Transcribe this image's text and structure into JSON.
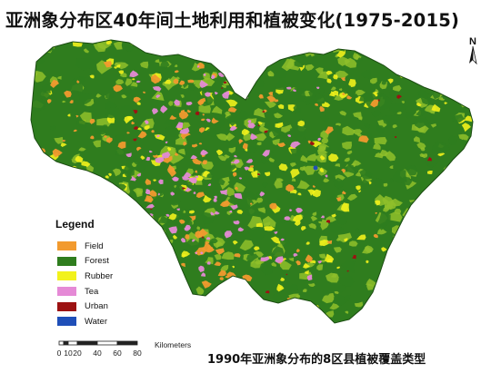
{
  "title": "亚洲象分布区40年间土地利用和植被变化(1975-2015)",
  "caption": "1990年亚洲象分布的8区县植被覆盖类型",
  "north_arrow": {
    "letter": "N",
    "icon": "north-arrow-icon"
  },
  "legend": {
    "title": "Legend",
    "items": [
      {
        "label": "Field",
        "color": "#f29a2e"
      },
      {
        "label": "Forest",
        "color": "#2f7d1e"
      },
      {
        "label": "Rubber",
        "color": "#f2f21b"
      },
      {
        "label": "Tea",
        "color": "#e58ad6"
      },
      {
        "label": "Urban",
        "color": "#9c1212"
      },
      {
        "label": "Water",
        "color": "#1f4fb8"
      }
    ]
  },
  "scale_bar": {
    "unit": "Kilometers",
    "ticks": [
      "0",
      "10",
      "20",
      "40",
      "60",
      "80"
    ]
  },
  "map_colors": {
    "forest": "#2f7d1e",
    "light_green": "#8fbf2a",
    "rubber": "#f2f21b",
    "field": "#f29a2e",
    "tea": "#e58ad6",
    "urban": "#9c1212",
    "water": "#1f4fb8"
  }
}
